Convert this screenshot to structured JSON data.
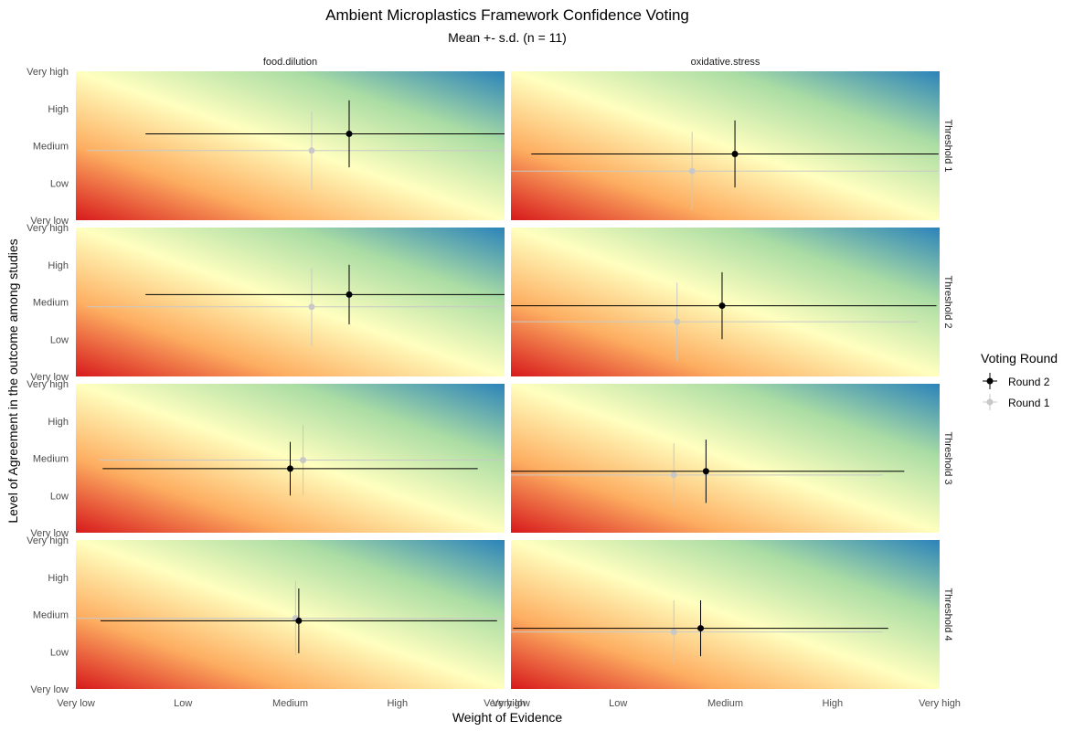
{
  "chart_data": {
    "type": "scatter",
    "title": "Ambient Microplastics Framework Confidence Voting",
    "subtitle": "Mean +- s.d. (n = 11)",
    "xlabel": "Weight of Evidence",
    "ylabel": "Level of Agreement in the outcome among studies",
    "xlim": [
      1,
      5
    ],
    "ylim": [
      1,
      5
    ],
    "x_ticks": [
      "Very low",
      "Low",
      "Medium",
      "High",
      "Very high"
    ],
    "y_ticks": [
      "Very low",
      "Low",
      "Medium",
      "High",
      "Very high"
    ],
    "background": "diverging gradient (red at low/low to blue at high/high)",
    "columns": [
      "food.dilution",
      "oxidative.stress"
    ],
    "rows": [
      "Threshold 1",
      "Threshold 2",
      "Threshold 3",
      "Threshold 4"
    ],
    "legend": {
      "title": "Voting Round",
      "position": "right",
      "entries": [
        {
          "label": "Round 2",
          "color": "#000000"
        },
        {
          "label": "Round 1",
          "color": "#c8c8c8"
        }
      ]
    },
    "panels": [
      {
        "col": "food.dilution",
        "row": "Threshold 1",
        "round2": {
          "x": 3.55,
          "y": 3.32,
          "xsd": 1.9,
          "ysd": 0.9
        },
        "round1": {
          "x": 3.2,
          "y": 2.87,
          "xsd": 2.1,
          "ysd": 1.05
        }
      },
      {
        "col": "oxidative.stress",
        "row": "Threshold 1",
        "round2": {
          "x": 3.09,
          "y": 2.78,
          "xsd": 1.9,
          "ysd": 0.9
        },
        "round1": {
          "x": 2.69,
          "y": 2.32,
          "xsd": 2.3,
          "ysd": 1.05
        }
      },
      {
        "col": "food.dilution",
        "row": "Threshold 2",
        "round2": {
          "x": 3.55,
          "y": 3.2,
          "xsd": 1.9,
          "ysd": 0.8
        },
        "round1": {
          "x": 3.2,
          "y": 2.87,
          "xsd": 2.1,
          "ysd": 1.05
        }
      },
      {
        "col": "oxidative.stress",
        "row": "Threshold 2",
        "round2": {
          "x": 2.97,
          "y": 2.9,
          "xsd": 2.0,
          "ysd": 0.9
        },
        "round1": {
          "x": 2.55,
          "y": 2.47,
          "xsd": 2.25,
          "ysd": 1.05
        }
      },
      {
        "col": "food.dilution",
        "row": "Threshold 3",
        "round2": {
          "x": 3.0,
          "y": 2.72,
          "xsd": 1.75,
          "ysd": 0.72
        },
        "round1": {
          "x": 3.12,
          "y": 2.95,
          "xsd": 1.9,
          "ysd": 0.95
        }
      },
      {
        "col": "oxidative.stress",
        "row": "Threshold 3",
        "round2": {
          "x": 2.82,
          "y": 2.65,
          "xsd": 1.85,
          "ysd": 0.85
        },
        "round1": {
          "x": 2.52,
          "y": 2.55,
          "xsd": 1.95,
          "ysd": 0.85
        }
      },
      {
        "col": "food.dilution",
        "row": "Threshold 4",
        "round2": {
          "x": 3.08,
          "y": 2.83,
          "xsd": 1.85,
          "ysd": 0.87
        },
        "round1": {
          "x": 3.05,
          "y": 2.9,
          "xsd": 2.05,
          "ysd": 1.0
        }
      },
      {
        "col": "oxidative.stress",
        "row": "Threshold 4",
        "round2": {
          "x": 2.77,
          "y": 2.63,
          "xsd": 1.75,
          "ysd": 0.75
        },
        "round1": {
          "x": 2.52,
          "y": 2.53,
          "xsd": 1.95,
          "ysd": 0.85
        }
      }
    ]
  }
}
